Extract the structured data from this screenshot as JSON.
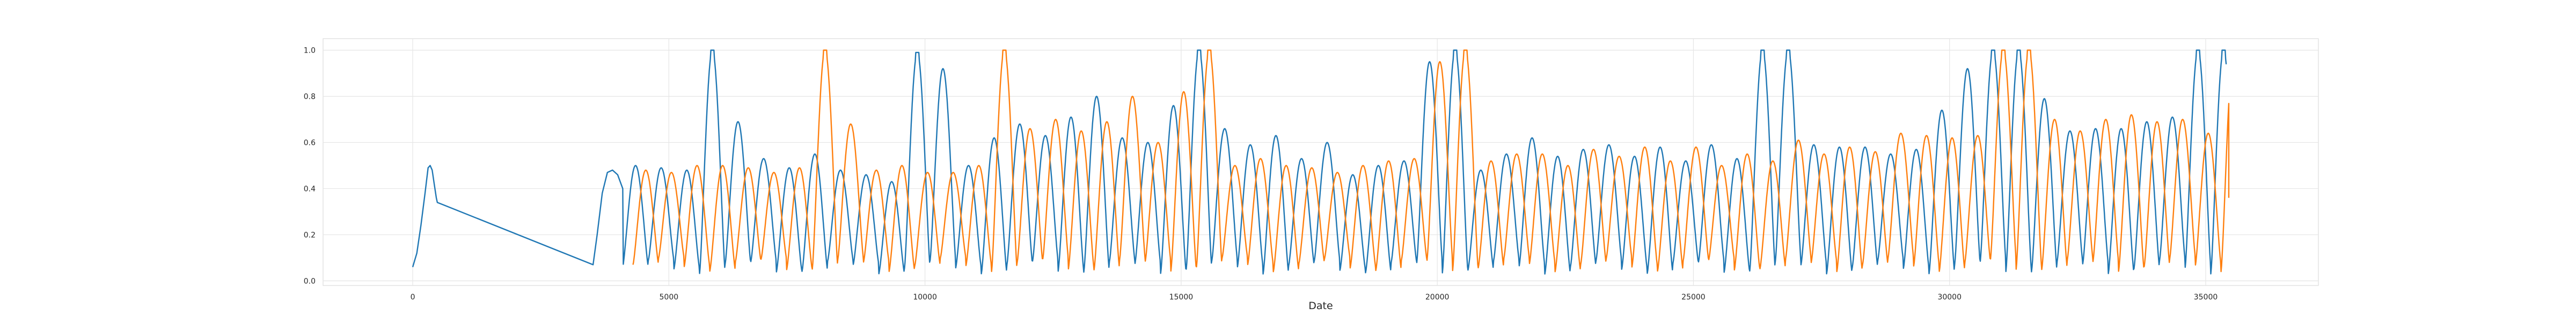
{
  "chart_data": {
    "type": "line",
    "title": "",
    "xlabel": "Date",
    "ylabel": "",
    "xlim": [
      -1750,
      37200
    ],
    "ylim": [
      -0.02,
      1.05
    ],
    "grid": true,
    "x_ticks": [
      0,
      5000,
      10000,
      15000,
      20000,
      25000,
      30000,
      35000
    ],
    "y_ticks": [
      0.0,
      0.2,
      0.4,
      0.6,
      0.8,
      1.0
    ],
    "series": [
      {
        "color": "#1f77b4",
        "start": 0,
        "gap": {
          "from": 480,
          "to": 3520
        },
        "segment1_points": [
          [
            0,
            0.06
          ],
          [
            80,
            0.12
          ],
          [
            160,
            0.24
          ],
          [
            240,
            0.38
          ],
          [
            300,
            0.49
          ],
          [
            340,
            0.5
          ],
          [
            380,
            0.48
          ],
          [
            420,
            0.42
          ],
          [
            460,
            0.36
          ],
          [
            480,
            0.34
          ]
        ],
        "segment2_points": [
          [
            3520,
            0.07
          ],
          [
            3600,
            0.2
          ],
          [
            3700,
            0.38
          ],
          [
            3800,
            0.47
          ],
          [
            3900,
            0.48
          ],
          [
            4000,
            0.46
          ],
          [
            4100,
            0.4
          ]
        ],
        "end": 35400,
        "period": 500,
        "phase": 4100,
        "min_range": [
          0.03,
          0.09
        ],
        "peaks": [
          0.5,
          0.49,
          0.48,
          1.0,
          0.69,
          0.53,
          0.49,
          0.55,
          0.48,
          0.46,
          0.43,
          0.99,
          0.92,
          0.5,
          0.62,
          0.68,
          0.63,
          0.71,
          0.8,
          0.62,
          0.6,
          0.76,
          1.0,
          0.66,
          0.59,
          0.63,
          0.53,
          0.6,
          0.46,
          0.5,
          0.52,
          0.95,
          1.0,
          0.48,
          0.55,
          0.62,
          0.54,
          0.57,
          0.59,
          0.54,
          0.58,
          0.52,
          0.59,
          0.53,
          1.0,
          1.0,
          0.59,
          0.58,
          0.58,
          0.55,
          0.57,
          0.74,
          0.92,
          1.0,
          1.0,
          0.79,
          0.65,
          0.66,
          0.66,
          0.69,
          0.71,
          1.0,
          1.0,
          0.88,
          0.84,
          0.74,
          0.68,
          0.71,
          0.72,
          0.77,
          0.9,
          0.81,
          0.75,
          1.0,
          0.85,
          0.76,
          0.73,
          0.8,
          0.85,
          0.93,
          1.0,
          1.0,
          0.74,
          0.75,
          0.8,
          0.73,
          0.94,
          1.0,
          0.75,
          0.8,
          0.86,
          1.0,
          0.98,
          0.75,
          0.73,
          0.73,
          0.86,
          1.0,
          1.0,
          0.95,
          0.7,
          0.82,
          0.8,
          1.0,
          0.71
        ]
      },
      {
        "color": "#ff7f0e",
        "start": 4300,
        "end": 35450,
        "end_value": 0.36,
        "period": 500,
        "phase": 4300,
        "min_range": [
          0.04,
          0.1
        ],
        "peaks": [
          0.48,
          0.47,
          0.5,
          0.5,
          0.49,
          0.47,
          0.49,
          1.0,
          0.68,
          0.48,
          0.5,
          0.47,
          0.47,
          0.5,
          1.0,
          0.66,
          0.7,
          0.65,
          0.69,
          0.8,
          0.6,
          0.82,
          1.0,
          0.5,
          0.53,
          0.5,
          0.49,
          0.47,
          0.5,
          0.52,
          0.53,
          0.95,
          1.0,
          0.52,
          0.55,
          0.55,
          0.5,
          0.57,
          0.54,
          0.58,
          0.52,
          0.58,
          0.5,
          0.55,
          0.52,
          0.61,
          0.55,
          0.58,
          0.56,
          0.64,
          0.63,
          0.62,
          0.63,
          1.0,
          1.0,
          0.7,
          0.65,
          0.7,
          0.72,
          0.69,
          0.7,
          0.64,
          1.0,
          1.0,
          0.68,
          0.74,
          0.8,
          0.75,
          0.72,
          0.7,
          0.77,
          0.8,
          1.0,
          1.0,
          0.82,
          0.7,
          0.75,
          0.72,
          0.85,
          0.8,
          0.74,
          0.82,
          0.72,
          1.0,
          0.88,
          0.84,
          0.86,
          0.73,
          0.8,
          1.0,
          1.0,
          0.84,
          0.75,
          0.72,
          0.78,
          0.73,
          0.86,
          0.75,
          0.83,
          0.95,
          0.84,
          0.82,
          0.76
        ]
      }
    ]
  }
}
